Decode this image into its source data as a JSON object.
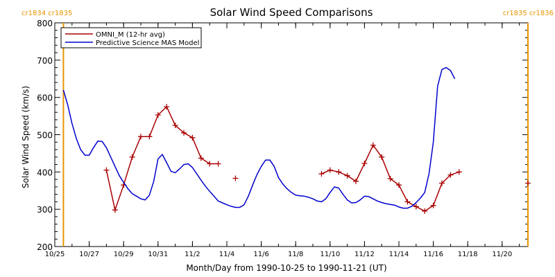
{
  "chart_data": {
    "type": "line",
    "title": "Solar Wind Speed Comparisons",
    "xlabel": "Month/Day from 1990-10-25 to 1990-11-21 (UT)",
    "ylabel": "Solar Wind Speed (km/s)",
    "xlim": [
      "1990-10-25",
      "1990-11-21 12:00"
    ],
    "ylim": [
      200,
      800
    ],
    "yticks": [
      200,
      300,
      400,
      500,
      600,
      700,
      800
    ],
    "xticks": [
      {
        "date": "1990-10-25",
        "label": "10/25"
      },
      {
        "date": "1990-10-27",
        "label": "10/27"
      },
      {
        "date": "1990-10-29",
        "label": "10/29"
      },
      {
        "date": "1990-10-31",
        "label": "10/31"
      },
      {
        "date": "1990-11-02",
        "label": "11/2"
      },
      {
        "date": "1990-11-04",
        "label": "11/4"
      },
      {
        "date": "1990-11-06",
        "label": "11/6"
      },
      {
        "date": "1990-11-08",
        "label": "11/8"
      },
      {
        "date": "1990-11-10",
        "label": "11/10"
      },
      {
        "date": "1990-11-12",
        "label": "11/12"
      },
      {
        "date": "1990-11-14",
        "label": "11/14"
      },
      {
        "date": "1990-11-16",
        "label": "11/16"
      },
      {
        "date": "1990-11-18",
        "label": "11/18"
      },
      {
        "date": "1990-11-20",
        "label": "11/20"
      }
    ],
    "legend_position": "top-left",
    "rotation_markers": [
      {
        "date": "1990-10-25 12:00",
        "label": "cr1834 cr1835",
        "side": "left"
      },
      {
        "date": "1990-11-21 12:00",
        "label": "cr1835 cr1836",
        "side": "right"
      }
    ],
    "series": [
      {
        "name": "OMNI_M (12-hr avg)",
        "color": "#aa0000",
        "marker": "plus",
        "segments": [
          [
            [
              "1990-10-28 00:00",
              405
            ],
            [
              "1990-10-28 12:00",
              298
            ],
            [
              "1990-10-29 00:00",
              365
            ],
            [
              "1990-10-29 12:00",
              440
            ],
            [
              "1990-10-30 00:00",
              495
            ],
            [
              "1990-10-30 12:00",
              495
            ],
            [
              "1990-10-31 00:00",
              553
            ],
            [
              "1990-10-31 12:00",
              575
            ],
            [
              "1990-11-01 00:00",
              525
            ],
            [
              "1990-11-01 12:00",
              505
            ],
            [
              "1990-11-02 00:00",
              492
            ],
            [
              "1990-11-02 12:00",
              437
            ],
            [
              "1990-11-03 00:00",
              422
            ],
            [
              "1990-11-03 12:00",
              422
            ]
          ],
          [
            [
              "1990-11-04 12:00",
              383
            ]
          ],
          [
            [
              "1990-11-09 12:00",
              395
            ],
            [
              "1990-11-10 00:00",
              405
            ],
            [
              "1990-11-10 12:00",
              400
            ],
            [
              "1990-11-11 00:00",
              390
            ],
            [
              "1990-11-11 12:00",
              375
            ],
            [
              "1990-11-12 00:00",
              423
            ],
            [
              "1990-11-12 12:00",
              472
            ],
            [
              "1990-11-13 00:00",
              440
            ],
            [
              "1990-11-13 12:00",
              382
            ],
            [
              "1990-11-14 00:00",
              365
            ],
            [
              "1990-11-14 12:00",
              320
            ],
            [
              "1990-11-15 00:00",
              307
            ],
            [
              "1990-11-15 12:00",
              295
            ],
            [
              "1990-11-16 00:00",
              310
            ],
            [
              "1990-11-16 12:00",
              370
            ],
            [
              "1990-11-17 00:00",
              392
            ],
            [
              "1990-11-17 12:00",
              400
            ]
          ],
          [
            [
              "1990-11-21 12:00",
              370
            ]
          ]
        ]
      },
      {
        "name": "Predictive Science MAS Model",
        "color": "#0000cc",
        "marker": "none",
        "points": [
          [
            "1990-10-25 12:00",
            620
          ],
          [
            "1990-10-25 18:00",
            580
          ],
          [
            "1990-10-26 00:00",
            530
          ],
          [
            "1990-10-26 06:00",
            490
          ],
          [
            "1990-10-26 12:00",
            460
          ],
          [
            "1990-10-26 18:00",
            445
          ],
          [
            "1990-10-27 00:00",
            445
          ],
          [
            "1990-10-27 06:00",
            465
          ],
          [
            "1990-10-27 12:00",
            483
          ],
          [
            "1990-10-27 18:00",
            482
          ],
          [
            "1990-10-28 00:00",
            465
          ],
          [
            "1990-10-28 06:00",
            440
          ],
          [
            "1990-10-28 12:00",
            415
          ],
          [
            "1990-10-28 18:00",
            390
          ],
          [
            "1990-10-29 00:00",
            372
          ],
          [
            "1990-10-29 06:00",
            355
          ],
          [
            "1990-10-29 12:00",
            342
          ],
          [
            "1990-10-29 18:00",
            335
          ],
          [
            "1990-10-30 00:00",
            328
          ],
          [
            "1990-10-30 06:00",
            325
          ],
          [
            "1990-10-30 12:00",
            338
          ],
          [
            "1990-10-30 18:00",
            375
          ],
          [
            "1990-10-31 00:00",
            435
          ],
          [
            "1990-10-31 06:00",
            447
          ],
          [
            "1990-10-31 12:00",
            425
          ],
          [
            "1990-10-31 18:00",
            402
          ],
          [
            "1990-11-01 00:00",
            398
          ],
          [
            "1990-11-01 06:00",
            408
          ],
          [
            "1990-11-01 12:00",
            420
          ],
          [
            "1990-11-01 18:00",
            422
          ],
          [
            "1990-11-02 00:00",
            412
          ],
          [
            "1990-11-02 06:00",
            395
          ],
          [
            "1990-11-02 12:00",
            378
          ],
          [
            "1990-11-02 18:00",
            362
          ],
          [
            "1990-11-03 00:00",
            348
          ],
          [
            "1990-11-03 06:00",
            335
          ],
          [
            "1990-11-03 12:00",
            322
          ],
          [
            "1990-11-03 18:00",
            317
          ],
          [
            "1990-11-04 00:00",
            312
          ],
          [
            "1990-11-04 06:00",
            308
          ],
          [
            "1990-11-04 12:00",
            305
          ],
          [
            "1990-11-04 18:00",
            305
          ],
          [
            "1990-11-05 00:00",
            312
          ],
          [
            "1990-11-05 06:00",
            335
          ],
          [
            "1990-11-05 12:00",
            365
          ],
          [
            "1990-11-05 18:00",
            393
          ],
          [
            "1990-11-06 00:00",
            415
          ],
          [
            "1990-11-06 06:00",
            432
          ],
          [
            "1990-11-06 12:00",
            432
          ],
          [
            "1990-11-06 18:00",
            415
          ],
          [
            "1990-11-07 00:00",
            385
          ],
          [
            "1990-11-07 06:00",
            368
          ],
          [
            "1990-11-07 12:00",
            355
          ],
          [
            "1990-11-07 18:00",
            345
          ],
          [
            "1990-11-08 00:00",
            338
          ],
          [
            "1990-11-08 06:00",
            336
          ],
          [
            "1990-11-08 12:00",
            335
          ],
          [
            "1990-11-08 18:00",
            332
          ],
          [
            "1990-11-09 00:00",
            328
          ],
          [
            "1990-11-09 06:00",
            322
          ],
          [
            "1990-11-09 12:00",
            320
          ],
          [
            "1990-11-09 18:00",
            328
          ],
          [
            "1990-11-10 00:00",
            345
          ],
          [
            "1990-11-10 06:00",
            360
          ],
          [
            "1990-11-10 12:00",
            357
          ],
          [
            "1990-11-10 18:00",
            340
          ],
          [
            "1990-11-11 00:00",
            325
          ],
          [
            "1990-11-11 06:00",
            317
          ],
          [
            "1990-11-11 12:00",
            318
          ],
          [
            "1990-11-11 18:00",
            325
          ],
          [
            "1990-11-12 00:00",
            335
          ],
          [
            "1990-11-12 06:00",
            334
          ],
          [
            "1990-11-12 12:00",
            328
          ],
          [
            "1990-11-12 18:00",
            322
          ],
          [
            "1990-11-13 00:00",
            318
          ],
          [
            "1990-11-13 06:00",
            315
          ],
          [
            "1990-11-13 12:00",
            313
          ],
          [
            "1990-11-13 18:00",
            311
          ],
          [
            "1990-11-14 00:00",
            306
          ],
          [
            "1990-11-14 06:00",
            303
          ],
          [
            "1990-11-14 12:00",
            303
          ],
          [
            "1990-11-14 18:00",
            308
          ],
          [
            "1990-11-15 00:00",
            318
          ],
          [
            "1990-11-15 06:00",
            330
          ],
          [
            "1990-11-15 12:00",
            345
          ],
          [
            "1990-11-15 18:00",
            395
          ],
          [
            "1990-11-16 00:00",
            480
          ],
          [
            "1990-11-16 06:00",
            630
          ],
          [
            "1990-11-16 12:00",
            675
          ],
          [
            "1990-11-16 18:00",
            680
          ],
          [
            "1990-11-17 00:00",
            672
          ],
          [
            "1990-11-17 06:00",
            650
          ]
        ]
      }
    ]
  }
}
